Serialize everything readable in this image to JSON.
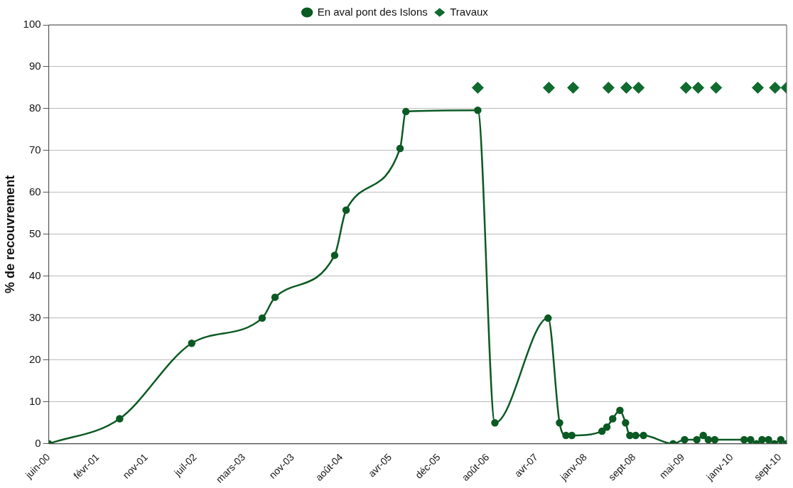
{
  "chart_data": {
    "type": "line",
    "ylabel": "% de recouvrement",
    "xlim": [
      "2000-06-20",
      "2010-11-04"
    ],
    "xticks": [
      {
        "value": "2000-06-20",
        "label": "juin-00"
      },
      {
        "value": "2001-02-26",
        "label": "févr-01"
      },
      {
        "value": "2001-11-03",
        "label": "nov-01"
      },
      {
        "value": "2002-07-12",
        "label": "juil-02"
      },
      {
        "value": "2003-03-19",
        "label": "mars-03"
      },
      {
        "value": "2003-11-25",
        "label": "nov-03"
      },
      {
        "value": "2004-08-01",
        "label": "août-04"
      },
      {
        "value": "2005-04-09",
        "label": "avr-05"
      },
      {
        "value": "2005-12-15",
        "label": "déc-05"
      },
      {
        "value": "2006-08-23",
        "label": "août-06"
      },
      {
        "value": "2007-04-30",
        "label": "avr-07"
      },
      {
        "value": "2008-01-06",
        "label": "janv-08"
      },
      {
        "value": "2008-09-12",
        "label": "sept-08"
      },
      {
        "value": "2009-05-21",
        "label": "mai-09"
      },
      {
        "value": "2010-01-26",
        "label": "janv-10"
      },
      {
        "value": "2010-09-30",
        "label": "sept-10"
      }
    ],
    "ylim": [
      0,
      100
    ],
    "yticks": [
      0,
      10,
      20,
      30,
      40,
      50,
      60,
      70,
      80,
      90,
      100
    ],
    "grid": "y",
    "legend": "top",
    "series": [
      {
        "name": "En aval pont des Islons",
        "type": "line",
        "marker": "circle",
        "line_style": "solid",
        "color": "#0b5a23",
        "x": [
          "2000-06-20",
          "2001-06-19",
          "2002-06-24",
          "2003-06-21",
          "2003-08-26",
          "2004-06-27",
          "2004-08-25",
          "2005-05-29",
          "2005-06-28",
          "2006-07-02",
          "2006-09-28",
          "2007-06-28",
          "2007-08-26",
          "2007-09-28",
          "2007-10-28",
          "2008-03-31",
          "2008-04-25",
          "2008-05-25",
          "2008-07-01",
          "2008-07-30",
          "2008-08-21",
          "2008-09-20",
          "2008-10-30",
          "2009-03-31",
          "2009-05-29",
          "2009-07-31",
          "2009-09-02",
          "2009-09-28",
          "2009-10-31",
          "2010-03-31",
          "2010-05-03",
          "2010-06-02",
          "2010-07-01",
          "2010-08-03",
          "2010-09-02",
          "2010-10-05",
          "2010-11-04"
        ],
        "values": [
          0,
          6,
          24,
          30,
          35,
          45,
          55.8,
          70.5,
          79.3,
          79.6,
          5,
          30,
          5,
          2,
          2,
          3,
          4,
          6,
          8,
          5,
          2,
          2,
          2,
          0,
          1,
          1,
          2,
          1,
          1,
          1,
          1,
          0,
          1,
          1,
          0,
          1,
          0
        ]
      },
      {
        "name": "Travaux",
        "type": "scatter",
        "marker": "diamond",
        "color": "#0f6b2e",
        "x": [
          "2006-07-02",
          "2007-07-02",
          "2007-11-04",
          "2008-05-03",
          "2008-08-03",
          "2008-10-05",
          "2009-06-05",
          "2009-08-07",
          "2009-11-07",
          "2010-06-09",
          "2010-09-06",
          "2010-11-04"
        ],
        "values": [
          85,
          85,
          85,
          85,
          85,
          85,
          85,
          85,
          85,
          85,
          85,
          85
        ]
      }
    ]
  }
}
